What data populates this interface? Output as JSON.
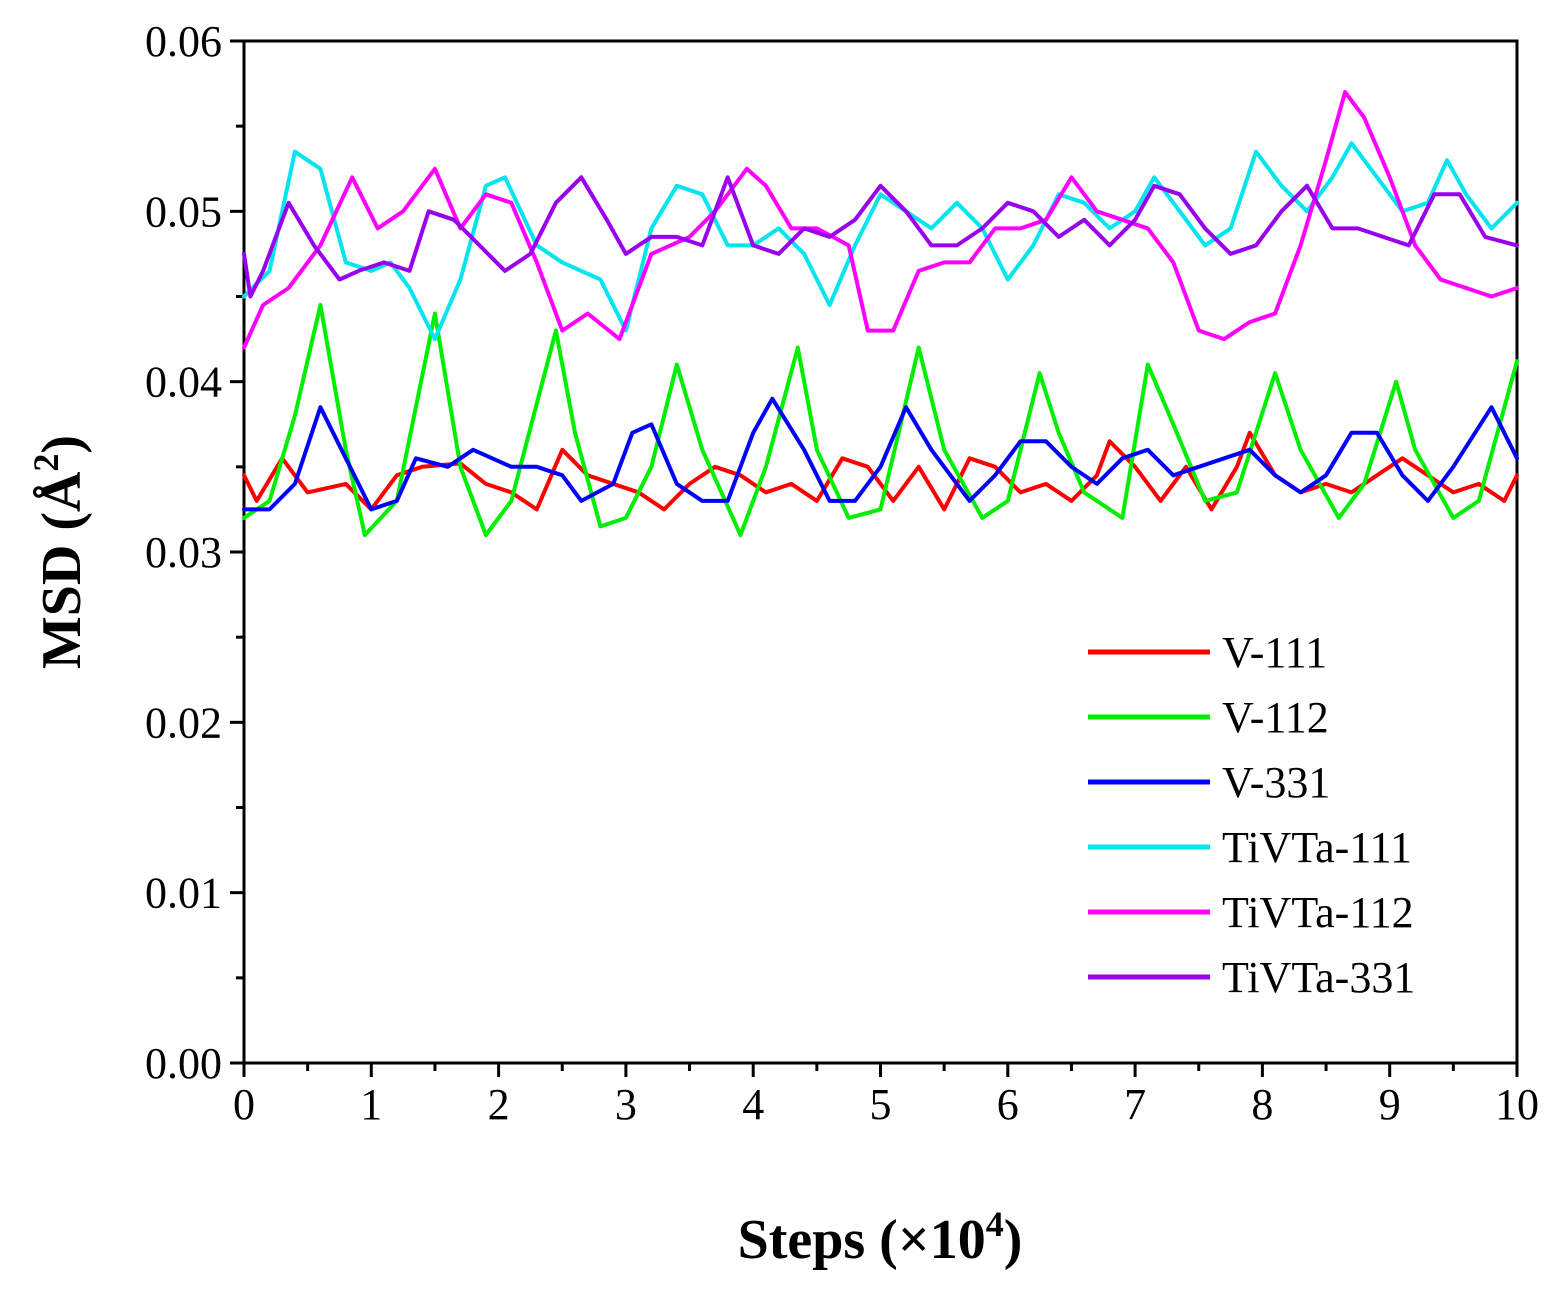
{
  "chart_data": {
    "type": "line",
    "xlabel": "Steps (×10",
    "xlabel_sup": "4",
    "xlabel_end": ")",
    "ylabel": "MSD (Å",
    "ylabel_sup": "2",
    "ylabel_end": ")",
    "xlim": [
      0,
      10
    ],
    "ylim": [
      0,
      0.06
    ],
    "xticks": [
      0,
      1,
      2,
      3,
      4,
      5,
      6,
      7,
      8,
      9,
      10
    ],
    "xtick_labels": [
      "0",
      "1",
      "2",
      "3",
      "4",
      "5",
      "6",
      "7",
      "8",
      "9",
      "10"
    ],
    "yticks": [
      0,
      0.01,
      0.02,
      0.03,
      0.04,
      0.05,
      0.06
    ],
    "ytick_labels": [
      "0.00",
      "0.01",
      "0.02",
      "0.03",
      "0.04",
      "0.05",
      "0.06"
    ],
    "legend_position": "bottom-right",
    "grid": false,
    "series": [
      {
        "name": "V-111",
        "color": "#ff0000",
        "x": [
          0,
          0.1,
          0.3,
          0.5,
          0.8,
          1.0,
          1.2,
          1.4,
          1.7,
          1.9,
          2.1,
          2.3,
          2.5,
          2.7,
          2.9,
          3.1,
          3.3,
          3.5,
          3.7,
          3.9,
          4.1,
          4.3,
          4.5,
          4.7,
          4.9,
          5.1,
          5.3,
          5.5,
          5.7,
          5.9,
          6.1,
          6.3,
          6.5,
          6.7,
          6.8,
          7.0,
          7.2,
          7.4,
          7.6,
          7.8,
          7.9,
          8.1,
          8.3,
          8.5,
          8.7,
          8.9,
          9.1,
          9.3,
          9.5,
          9.7,
          9.9,
          10.0
        ],
        "y": [
          0.0345,
          0.033,
          0.0355,
          0.0335,
          0.034,
          0.0325,
          0.0345,
          0.035,
          0.0352,
          0.034,
          0.0335,
          0.0325,
          0.036,
          0.0345,
          0.034,
          0.0335,
          0.0325,
          0.034,
          0.035,
          0.0345,
          0.0335,
          0.034,
          0.033,
          0.0355,
          0.035,
          0.033,
          0.035,
          0.0325,
          0.0355,
          0.035,
          0.0335,
          0.034,
          0.033,
          0.0345,
          0.0365,
          0.035,
          0.033,
          0.035,
          0.0325,
          0.035,
          0.037,
          0.0345,
          0.0335,
          0.034,
          0.0335,
          0.0345,
          0.0355,
          0.0345,
          0.0335,
          0.034,
          0.033,
          0.0345
        ]
      },
      {
        "name": "V-112",
        "color": "#00ee00",
        "x": [
          0,
          0.2,
          0.4,
          0.6,
          0.8,
          0.95,
          1.2,
          1.5,
          1.7,
          1.9,
          2.1,
          2.45,
          2.6,
          2.8,
          3.0,
          3.2,
          3.4,
          3.6,
          3.9,
          4.1,
          4.35,
          4.5,
          4.75,
          5.0,
          5.3,
          5.5,
          5.8,
          6.0,
          6.25,
          6.4,
          6.6,
          6.9,
          7.1,
          7.3,
          7.55,
          7.8,
          8.1,
          8.3,
          8.6,
          8.8,
          9.05,
          9.2,
          9.5,
          9.7,
          10.0
        ],
        "y": [
          0.032,
          0.033,
          0.038,
          0.0445,
          0.036,
          0.031,
          0.033,
          0.044,
          0.035,
          0.031,
          0.033,
          0.043,
          0.037,
          0.0315,
          0.032,
          0.035,
          0.041,
          0.036,
          0.031,
          0.035,
          0.042,
          0.036,
          0.032,
          0.0325,
          0.042,
          0.036,
          0.032,
          0.033,
          0.0405,
          0.037,
          0.0335,
          0.032,
          0.041,
          0.0375,
          0.033,
          0.0335,
          0.0405,
          0.036,
          0.032,
          0.034,
          0.04,
          0.036,
          0.032,
          0.033,
          0.0412
        ]
      },
      {
        "name": "V-331",
        "color": "#0000ff",
        "x": [
          0,
          0.2,
          0.4,
          0.6,
          0.8,
          1.0,
          1.2,
          1.35,
          1.6,
          1.8,
          2.1,
          2.3,
          2.5,
          2.65,
          2.9,
          3.05,
          3.2,
          3.4,
          3.6,
          3.8,
          4.0,
          4.15,
          4.4,
          4.6,
          4.8,
          5.0,
          5.2,
          5.4,
          5.7,
          5.9,
          6.1,
          6.3,
          6.5,
          6.7,
          6.9,
          7.1,
          7.3,
          7.5,
          7.7,
          7.9,
          8.1,
          8.3,
          8.5,
          8.7,
          8.9,
          9.1,
          9.3,
          9.5,
          9.8,
          10.0
        ],
        "y": [
          0.0325,
          0.0325,
          0.034,
          0.0385,
          0.0355,
          0.0325,
          0.033,
          0.0355,
          0.035,
          0.036,
          0.035,
          0.035,
          0.0345,
          0.033,
          0.034,
          0.037,
          0.0375,
          0.034,
          0.033,
          0.033,
          0.037,
          0.039,
          0.036,
          0.033,
          0.033,
          0.035,
          0.0385,
          0.036,
          0.033,
          0.0345,
          0.0365,
          0.0365,
          0.035,
          0.034,
          0.0355,
          0.036,
          0.0345,
          0.035,
          0.0355,
          0.036,
          0.0345,
          0.0335,
          0.0345,
          0.037,
          0.037,
          0.0345,
          0.033,
          0.035,
          0.0385,
          0.0355
        ]
      },
      {
        "name": "TiVTa-111",
        "color": "#00e5ee",
        "x": [
          0,
          0.2,
          0.4,
          0.6,
          0.8,
          1.0,
          1.15,
          1.3,
          1.5,
          1.7,
          1.9,
          2.05,
          2.3,
          2.5,
          2.8,
          3.0,
          3.2,
          3.4,
          3.6,
          3.8,
          4.0,
          4.2,
          4.4,
          4.6,
          4.8,
          5.0,
          5.2,
          5.4,
          5.6,
          5.8,
          6.0,
          6.2,
          6.4,
          6.6,
          6.8,
          7.0,
          7.15,
          7.35,
          7.55,
          7.75,
          7.95,
          8.15,
          8.35,
          8.55,
          8.7,
          8.9,
          9.1,
          9.3,
          9.45,
          9.6,
          9.8,
          10.0
        ],
        "y": [
          0.045,
          0.0465,
          0.0535,
          0.0525,
          0.047,
          0.0465,
          0.047,
          0.0455,
          0.0425,
          0.046,
          0.0515,
          0.052,
          0.048,
          0.047,
          0.046,
          0.043,
          0.049,
          0.0515,
          0.051,
          0.048,
          0.048,
          0.049,
          0.0475,
          0.0445,
          0.048,
          0.051,
          0.05,
          0.049,
          0.0505,
          0.049,
          0.046,
          0.048,
          0.051,
          0.0505,
          0.049,
          0.05,
          0.052,
          0.05,
          0.048,
          0.049,
          0.0535,
          0.0515,
          0.05,
          0.052,
          0.054,
          0.052,
          0.05,
          0.0505,
          0.053,
          0.051,
          0.049,
          0.0505
        ]
      },
      {
        "name": "TiVTa-112",
        "color": "#ff00ff",
        "x": [
          0,
          0.15,
          0.35,
          0.6,
          0.85,
          1.05,
          1.25,
          1.5,
          1.7,
          1.9,
          2.1,
          2.3,
          2.5,
          2.7,
          2.95,
          3.2,
          3.5,
          3.7,
          3.95,
          4.1,
          4.3,
          4.5,
          4.75,
          4.9,
          5.1,
          5.3,
          5.5,
          5.7,
          5.9,
          6.1,
          6.3,
          6.5,
          6.7,
          6.9,
          7.1,
          7.3,
          7.5,
          7.7,
          7.9,
          8.1,
          8.3,
          8.5,
          8.65,
          8.8,
          9.0,
          9.2,
          9.4,
          9.6,
          9.8,
          10.0
        ],
        "y": [
          0.042,
          0.0445,
          0.0455,
          0.048,
          0.052,
          0.049,
          0.05,
          0.0525,
          0.049,
          0.051,
          0.0505,
          0.047,
          0.043,
          0.044,
          0.0425,
          0.0475,
          0.0485,
          0.05,
          0.0525,
          0.0515,
          0.049,
          0.049,
          0.048,
          0.043,
          0.043,
          0.0465,
          0.047,
          0.047,
          0.049,
          0.049,
          0.0495,
          0.052,
          0.05,
          0.0495,
          0.049,
          0.047,
          0.043,
          0.0425,
          0.0435,
          0.044,
          0.048,
          0.053,
          0.057,
          0.0555,
          0.052,
          0.048,
          0.046,
          0.0455,
          0.045,
          0.0455
        ]
      },
      {
        "name": "TiVTa-331",
        "color": "#9900ee",
        "x": [
          0,
          0.05,
          0.15,
          0.35,
          0.55,
          0.75,
          0.9,
          1.1,
          1.3,
          1.45,
          1.65,
          1.85,
          2.05,
          2.25,
          2.45,
          2.65,
          2.85,
          3.0,
          3.2,
          3.4,
          3.6,
          3.8,
          4.0,
          4.2,
          4.4,
          4.6,
          4.8,
          5.0,
          5.2,
          5.4,
          5.6,
          5.8,
          6.0,
          6.2,
          6.4,
          6.6,
          6.8,
          7.0,
          7.15,
          7.35,
          7.55,
          7.75,
          7.95,
          8.15,
          8.35,
          8.55,
          8.75,
          8.95,
          9.15,
          9.35,
          9.55,
          9.75,
          10.0
        ],
        "y": [
          0.0475,
          0.045,
          0.0465,
          0.0505,
          0.048,
          0.046,
          0.0465,
          0.047,
          0.0465,
          0.05,
          0.0495,
          0.048,
          0.0465,
          0.0475,
          0.0505,
          0.052,
          0.0495,
          0.0475,
          0.0485,
          0.0485,
          0.048,
          0.052,
          0.048,
          0.0475,
          0.049,
          0.0485,
          0.0495,
          0.0515,
          0.05,
          0.048,
          0.048,
          0.049,
          0.0505,
          0.05,
          0.0485,
          0.0495,
          0.048,
          0.0495,
          0.0515,
          0.051,
          0.049,
          0.0475,
          0.048,
          0.05,
          0.0515,
          0.049,
          0.049,
          0.0485,
          0.048,
          0.051,
          0.051,
          0.0485,
          0.048
        ]
      }
    ]
  }
}
